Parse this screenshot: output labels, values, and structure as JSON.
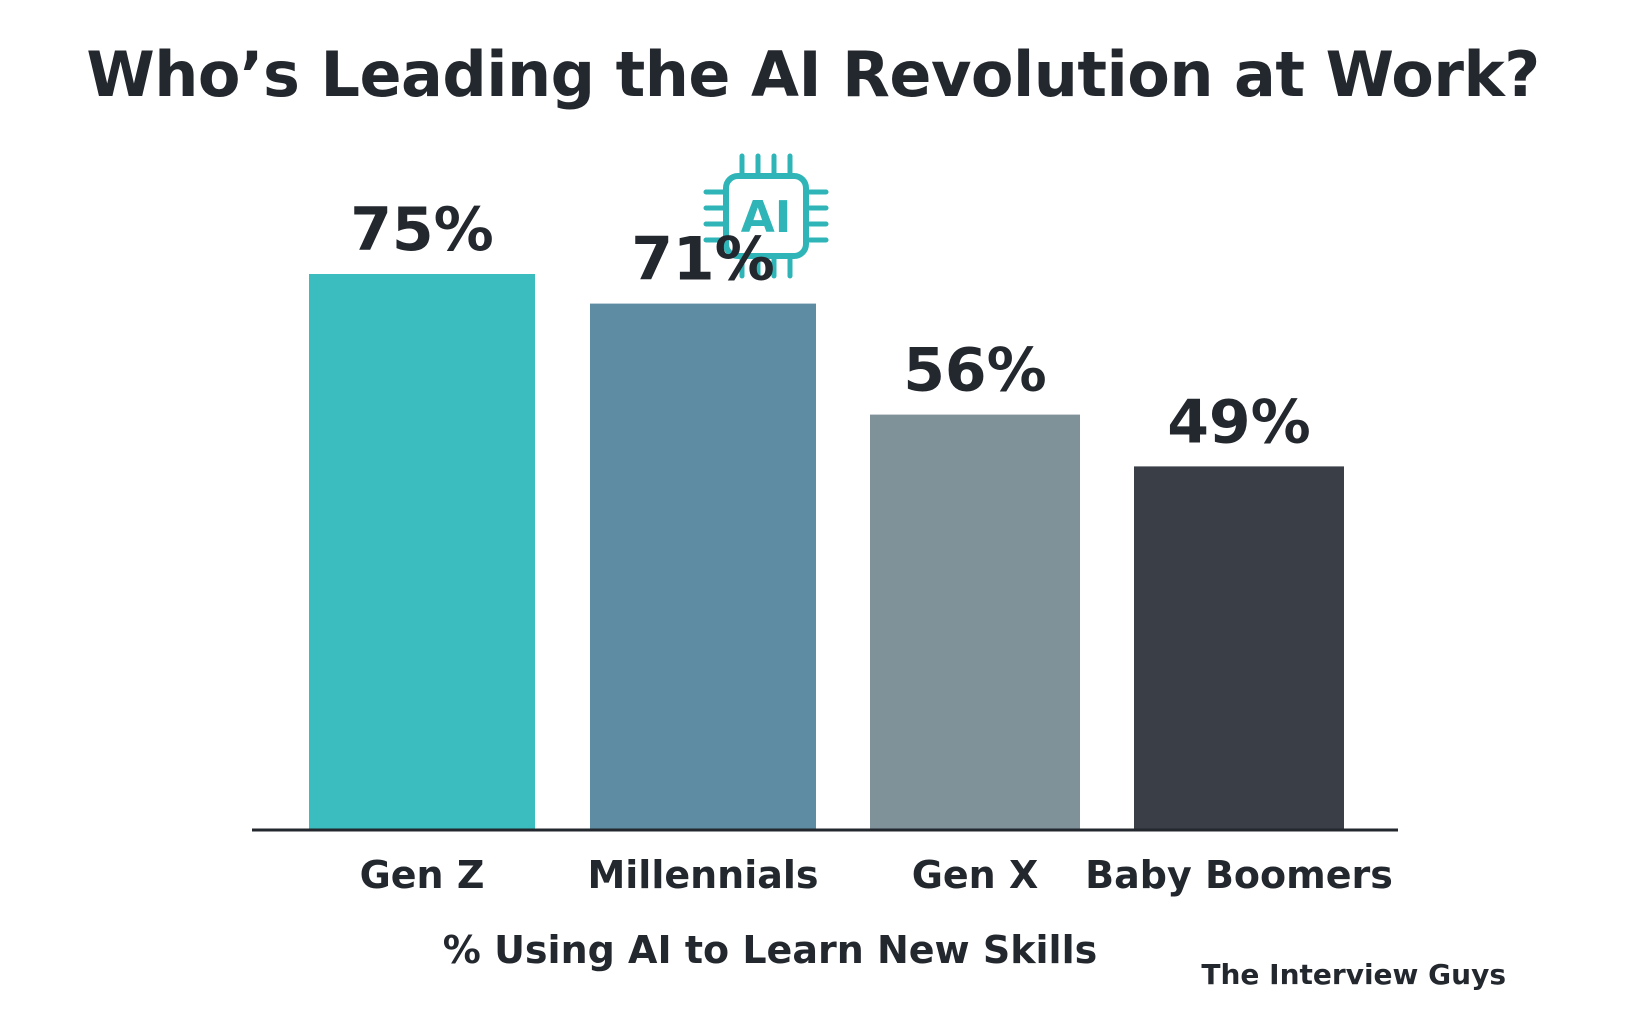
{
  "title": "Who’s Leading the AI Revolution at Work?",
  "icon": {
    "name": "ai-chip-icon",
    "text": "AI",
    "color": "#2fb5b7"
  },
  "credit": "The Interview Guys",
  "chart_data": {
    "type": "bar",
    "title": "Who’s Leading the AI Revolution at Work?",
    "xlabel": "% Using AI to Learn New Skills",
    "ylabel": "",
    "categories": [
      "Gen Z",
      "Millennials",
      "Gen X",
      "Baby Boomers"
    ],
    "values": [
      75,
      71,
      56,
      49
    ],
    "value_labels": [
      "75%",
      "71%",
      "56%",
      "49%"
    ],
    "colors": [
      "#3bbdbf",
      "#5e8ca3",
      "#7f9199",
      "#3a3f47"
    ],
    "ylim": [
      0,
      100
    ],
    "grid": false,
    "legend": "none"
  }
}
